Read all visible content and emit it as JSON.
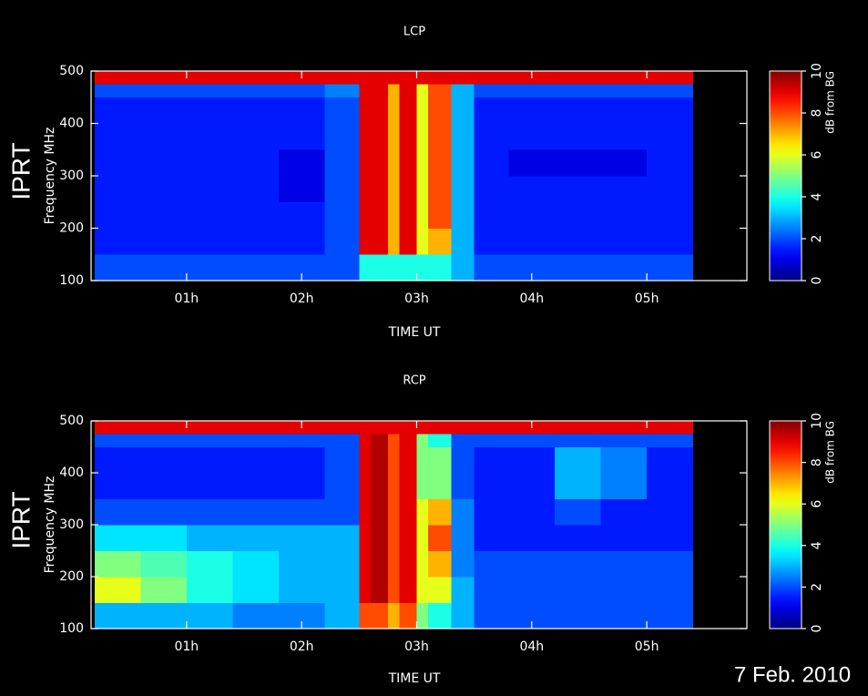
{
  "caption": "7 Feb. 2010",
  "chart_data": [
    {
      "type": "heatmap",
      "title": "LCP",
      "side_label": "IPRT",
      "x_label": "TIME UT",
      "y_label": "Frequency MHz",
      "colormap": "jet",
      "xlim": [
        0.17,
        5.87
      ],
      "xticks": [
        {
          "value": 1,
          "label": "01h"
        },
        {
          "value": 2,
          "label": "02h"
        },
        {
          "value": 3,
          "label": "03h"
        },
        {
          "value": 4,
          "label": "04h"
        },
        {
          "value": 5,
          "label": "05h"
        }
      ],
      "ylim": [
        100,
        500
      ],
      "yticks": [
        100,
        200,
        300,
        400,
        500
      ],
      "xbins": [
        0.2,
        0.6,
        1.0,
        1.4,
        1.8,
        2.2,
        2.5,
        2.6,
        2.75,
        2.85,
        3.0,
        3.1,
        3.3,
        3.5,
        3.8,
        4.2,
        4.6,
        5.0,
        5.4
      ],
      "ybins": [
        100,
        150,
        200,
        250,
        300,
        350,
        400,
        450,
        475,
        500
      ],
      "z": [
        [
          2,
          2,
          2,
          2,
          2,
          2,
          4,
          4,
          4,
          4,
          4,
          4,
          3,
          2,
          2,
          2,
          2,
          2
        ],
        [
          1.5,
          1.5,
          1.5,
          1.5,
          1.5,
          2,
          9,
          9,
          7,
          9,
          6,
          7,
          3,
          1.5,
          1.5,
          1.5,
          1.5,
          1.5
        ],
        [
          1.5,
          1.5,
          1.5,
          1.5,
          1.5,
          2,
          9,
          9,
          7,
          9,
          6,
          8,
          3,
          1.5,
          1.5,
          1.5,
          1.5,
          1.5
        ],
        [
          1.5,
          1.5,
          1.5,
          1.5,
          1,
          2,
          9,
          9,
          7,
          9,
          6,
          8,
          3,
          1.5,
          1.5,
          1.5,
          1.5,
          1.5
        ],
        [
          1.5,
          1.5,
          1.5,
          1.5,
          1,
          2,
          9,
          9,
          7,
          9,
          6,
          8,
          3,
          1.5,
          1,
          1,
          1,
          1.5
        ],
        [
          1.5,
          1.5,
          1.5,
          1.5,
          1.5,
          2,
          9,
          9,
          7,
          9,
          6,
          8,
          3,
          1.5,
          1.5,
          1.5,
          1.5,
          1.5
        ],
        [
          1.5,
          1.5,
          1.5,
          1.5,
          1.5,
          2,
          9,
          9,
          7,
          9,
          6,
          8,
          3,
          1.5,
          1.5,
          1.5,
          1.5,
          1.5
        ],
        [
          2,
          2,
          2,
          2,
          2,
          2.5,
          9,
          9,
          7,
          9,
          6,
          8,
          3,
          2,
          2,
          2,
          2,
          2
        ],
        [
          9,
          9,
          9,
          9,
          9,
          9,
          9,
          9,
          9,
          9,
          9,
          9,
          9,
          9,
          9,
          9,
          9,
          9
        ]
      ],
      "colorbar": {
        "label": "dB from BG",
        "clim": [
          0,
          10
        ],
        "ticks": [
          0,
          2,
          4,
          6,
          8,
          10
        ]
      }
    },
    {
      "type": "heatmap",
      "title": "RCP",
      "side_label": "IPRT",
      "x_label": "TIME UT",
      "y_label": "Frequency MHz",
      "colormap": "jet",
      "xlim": [
        0.17,
        5.87
      ],
      "xticks": [
        {
          "value": 1,
          "label": "01h"
        },
        {
          "value": 2,
          "label": "02h"
        },
        {
          "value": 3,
          "label": "03h"
        },
        {
          "value": 4,
          "label": "04h"
        },
        {
          "value": 5,
          "label": "05h"
        }
      ],
      "ylim": [
        100,
        500
      ],
      "yticks": [
        100,
        200,
        300,
        400,
        500
      ],
      "xbins": [
        0.2,
        0.6,
        1.0,
        1.4,
        1.8,
        2.2,
        2.5,
        2.6,
        2.75,
        2.85,
        3.0,
        3.1,
        3.3,
        3.5,
        3.8,
        4.2,
        4.6,
        5.0,
        5.4
      ],
      "ybins": [
        100,
        150,
        200,
        250,
        300,
        350,
        400,
        450,
        475,
        500
      ],
      "z": [
        [
          3,
          3,
          3,
          2.5,
          2.5,
          3,
          8,
          8,
          7,
          8,
          5,
          4,
          3,
          2,
          2,
          2,
          2,
          2
        ],
        [
          6,
          5,
          4,
          3.5,
          3,
          3,
          9,
          9.5,
          8,
          9,
          6,
          6,
          3,
          2,
          2,
          2,
          2,
          2
        ],
        [
          5,
          4.5,
          4,
          3.5,
          3,
          3,
          9,
          9.5,
          8,
          9,
          6,
          7,
          2.5,
          2,
          2,
          2,
          2,
          2
        ],
        [
          3.5,
          3.5,
          3,
          3,
          3,
          3,
          9,
          9.5,
          8,
          9,
          6,
          8,
          2.5,
          1.5,
          1.5,
          1.5,
          1.5,
          1.5
        ],
        [
          2,
          2,
          2,
          2,
          2,
          2,
          9,
          9.5,
          8,
          9,
          6,
          7,
          2.5,
          1.5,
          1.5,
          2,
          1.5,
          1.5
        ],
        [
          1.5,
          1.5,
          1.5,
          1.5,
          1.5,
          2,
          9,
          9.5,
          8,
          9,
          5,
          5,
          2,
          1.5,
          1.5,
          3,
          2.5,
          1.5
        ],
        [
          1.5,
          1.5,
          1.5,
          1.5,
          1.5,
          2,
          9,
          9.5,
          8,
          9,
          5,
          5,
          2,
          1.5,
          1.5,
          3,
          2.5,
          1.5
        ],
        [
          2,
          2,
          2,
          2,
          2,
          2,
          9,
          9.5,
          8,
          9,
          5,
          4,
          2,
          2,
          2,
          2,
          2,
          2
        ],
        [
          9,
          9,
          9,
          9,
          9,
          9,
          9,
          9,
          9,
          9,
          9,
          9,
          9,
          9,
          9,
          9,
          9,
          9
        ]
      ],
      "colorbar": {
        "label": "dB from BG",
        "clim": [
          0,
          10
        ],
        "ticks": [
          0,
          2,
          4,
          6,
          8,
          10
        ]
      }
    }
  ]
}
